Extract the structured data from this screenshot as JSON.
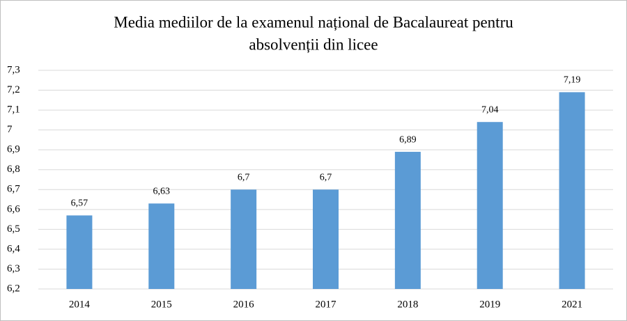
{
  "chart_data": {
    "type": "bar",
    "title": [
      "Media mediilor de la examenul național de Bacalaureat pentru",
      "absolvenții din licee"
    ],
    "categories": [
      "2014",
      "2015",
      "2016",
      "2017",
      "2018",
      "2019",
      "2021"
    ],
    "values": [
      6.57,
      6.63,
      6.7,
      6.7,
      6.89,
      7.04,
      7.19
    ],
    "value_labels": [
      "6,57",
      "6,63",
      "6,7",
      "6,7",
      "6,89",
      "7,04",
      "7,19"
    ],
    "color": "#5b9bd5",
    "ylim": [
      6.2,
      7.3
    ],
    "yticks": [
      {
        "value": 6.2,
        "label": "6,2"
      },
      {
        "value": 6.3,
        "label": "6,3"
      },
      {
        "value": 6.4,
        "label": "6,4"
      },
      {
        "value": 6.5,
        "label": "6,5"
      },
      {
        "value": 6.6,
        "label": "6,6"
      },
      {
        "value": 6.7,
        "label": "6,7"
      },
      {
        "value": 6.8,
        "label": "6,8"
      },
      {
        "value": 6.9,
        "label": "6,9"
      },
      7,
      {
        "value": 7.1,
        "label": "7,1"
      },
      {
        "value": 7.2,
        "label": "7,2"
      },
      {
        "value": 7.3,
        "label": "7,3"
      }
    ],
    "grid": true
  }
}
